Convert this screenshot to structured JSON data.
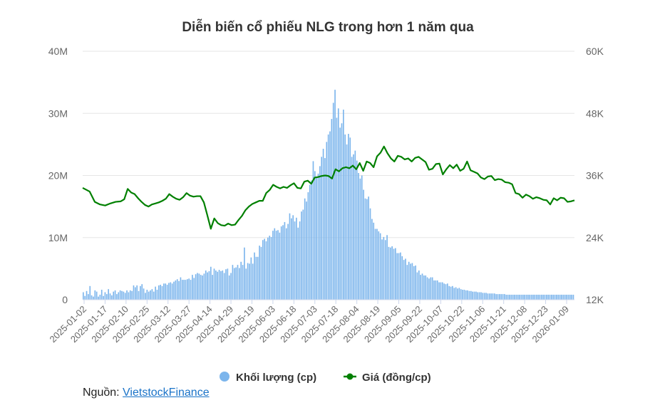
{
  "chart_data": {
    "type": "bar+line",
    "title": "Diễn biến cổ phiếu NLG trong hơn 1 năm qua",
    "left_axis": {
      "ticks": [
        "0",
        "10M",
        "20M",
        "30M",
        "40M"
      ],
      "range": [
        0,
        40000000
      ]
    },
    "right_axis": {
      "ticks": [
        "12K",
        "24K",
        "36K",
        "48K",
        "60K"
      ],
      "range": [
        12000,
        60000
      ]
    },
    "x_ticks": [
      "2025-01-02",
      "2025-01-17",
      "2025-02-10",
      "2025-02-25",
      "2025-03-12",
      "2025-03-27",
      "2025-04-14",
      "2025-04-29",
      "2025-05-19",
      "2025-06-03",
      "2025-06-18",
      "2025-07-03",
      "2025-07-18",
      "2025-08-04",
      "2025-08-19",
      "2025-09-05",
      "2025-09-22",
      "2025-10-07",
      "2025-10-22",
      "2025-11-06",
      "2025-11-21",
      "2025-12-08",
      "2025-12-23",
      "2026-01-09"
    ],
    "legend": [
      {
        "name": "Khối lượng (cp)",
        "color": "#7cb5ec",
        "marker": "circle"
      },
      {
        "name": "Giá (đồng/cp)",
        "color": "#008000",
        "marker": "line-dot"
      }
    ],
    "grid": true,
    "price_series": {
      "name": "Giá (đồng/cp)",
      "color": "#008000",
      "points": [
        [
          0,
          33.6
        ],
        [
          4,
          32.9
        ],
        [
          7,
          30.9
        ],
        [
          10,
          30.4
        ],
        [
          13,
          30.2
        ],
        [
          16,
          30.6
        ],
        [
          19,
          30.9
        ],
        [
          22,
          31.0
        ],
        [
          24,
          31.4
        ],
        [
          26,
          33.4
        ],
        [
          28,
          32.7
        ],
        [
          30,
          32.4
        ],
        [
          32,
          31.6
        ],
        [
          34,
          30.9
        ],
        [
          36,
          30.3
        ],
        [
          38,
          30.0
        ],
        [
          40,
          30.4
        ],
        [
          42,
          30.6
        ],
        [
          44,
          30.8
        ],
        [
          46,
          31.1
        ],
        [
          48,
          31.5
        ],
        [
          50,
          32.4
        ],
        [
          52,
          31.9
        ],
        [
          54,
          31.5
        ],
        [
          56,
          31.3
        ],
        [
          58,
          31.8
        ],
        [
          60,
          32.6
        ],
        [
          62,
          32.1
        ],
        [
          64,
          31.9
        ],
        [
          66,
          32.0
        ],
        [
          68,
          32.0
        ],
        [
          70,
          30.8
        ],
        [
          72,
          28.3
        ],
        [
          74,
          25.7
        ],
        [
          76,
          27.7
        ],
        [
          78,
          26.8
        ],
        [
          80,
          26.4
        ],
        [
          82,
          26.3
        ],
        [
          84,
          26.7
        ],
        [
          86,
          26.4
        ],
        [
          88,
          26.5
        ],
        [
          90,
          27.4
        ],
        [
          92,
          28.2
        ],
        [
          94,
          29.3
        ],
        [
          96,
          30.0
        ],
        [
          98,
          30.5
        ],
        [
          100,
          30.8
        ],
        [
          102,
          31.1
        ],
        [
          104,
          31.1
        ],
        [
          106,
          32.6
        ],
        [
          108,
          33.2
        ],
        [
          110,
          34.2
        ],
        [
          112,
          33.8
        ],
        [
          114,
          33.5
        ],
        [
          116,
          33.8
        ],
        [
          118,
          33.6
        ],
        [
          120,
          34.1
        ],
        [
          122,
          34.5
        ],
        [
          124,
          33.6
        ],
        [
          126,
          33.5
        ],
        [
          128,
          34.8
        ],
        [
          130,
          35.0
        ],
        [
          132,
          34.4
        ],
        [
          134,
          35.6
        ],
        [
          136,
          35.7
        ],
        [
          138,
          35.9
        ],
        [
          140,
          36.0
        ],
        [
          142,
          35.9
        ],
        [
          144,
          35.4
        ],
        [
          146,
          37.2
        ],
        [
          148,
          36.8
        ],
        [
          150,
          37.4
        ],
        [
          152,
          37.6
        ],
        [
          154,
          37.4
        ],
        [
          156,
          37.9
        ],
        [
          158,
          37.2
        ],
        [
          160,
          38.4
        ],
        [
          162,
          36.9
        ],
        [
          164,
          38.7
        ],
        [
          166,
          38.4
        ],
        [
          168,
          37.6
        ],
        [
          170,
          39.7
        ],
        [
          172,
          40.4
        ],
        [
          174,
          41.6
        ],
        [
          176,
          40.3
        ],
        [
          178,
          39.3
        ],
        [
          180,
          38.7
        ],
        [
          182,
          39.8
        ],
        [
          184,
          39.6
        ],
        [
          186,
          39.1
        ],
        [
          188,
          39.3
        ],
        [
          190,
          38.7
        ],
        [
          192,
          39.4
        ],
        [
          194,
          39.6
        ],
        [
          196,
          39.1
        ],
        [
          198,
          38.6
        ],
        [
          200,
          37.1
        ],
        [
          202,
          37.3
        ],
        [
          204,
          38.2
        ],
        [
          206,
          38.3
        ],
        [
          208,
          36.2
        ],
        [
          210,
          37.2
        ],
        [
          212,
          38.0
        ],
        [
          214,
          37.4
        ],
        [
          216,
          38.1
        ],
        [
          218,
          36.9
        ],
        [
          220,
          37.3
        ],
        [
          222,
          38.7
        ],
        [
          224,
          37.0
        ],
        [
          226,
          36.7
        ],
        [
          228,
          36.4
        ],
        [
          230,
          35.6
        ],
        [
          232,
          35.3
        ],
        [
          234,
          35.8
        ],
        [
          236,
          35.9
        ],
        [
          238,
          35.1
        ],
        [
          240,
          35.3
        ],
        [
          242,
          35.2
        ],
        [
          244,
          34.7
        ],
        [
          246,
          34.6
        ],
        [
          248,
          34.3
        ],
        [
          250,
          32.6
        ],
        [
          252,
          32.4
        ],
        [
          254,
          31.7
        ],
        [
          256,
          32.3
        ],
        [
          258,
          32.0
        ],
        [
          260,
          31.5
        ],
        [
          262,
          31.8
        ],
        [
          264,
          31.6
        ],
        [
          266,
          31.3
        ],
        [
          268,
          31.2
        ],
        [
          270,
          30.4
        ],
        [
          272,
          31.6
        ],
        [
          274,
          31.2
        ],
        [
          276,
          31.7
        ],
        [
          278,
          31.6
        ],
        [
          280,
          30.9
        ],
        [
          282,
          31.0
        ],
        [
          284,
          31.2
        ]
      ]
    },
    "volume_series": {
      "name": "Khối lượng (cp)",
      "color": "#7cb5ec",
      "values_millions": [
        1.2,
        0.6,
        1.4,
        0.9,
        2.2,
        0.7,
        0.5,
        1.5,
        1.3,
        0.5,
        0.8,
        1.6,
        0.6,
        1.2,
        0.9,
        1.7,
        1.0,
        0.7,
        1.3,
        1.5,
        0.9,
        1.2,
        1.5,
        1.4,
        1.3,
        1.1,
        1.5,
        1.2,
        1.5,
        1.4,
        2.3,
        2.0,
        2.3,
        1.4,
        2.2,
        2.5,
        1.8,
        1.1,
        1.6,
        1.3,
        1.5,
        1.7,
        1.3,
        2.1,
        1.6,
        2.3,
        2.4,
        2.2,
        2.6,
        2.6,
        2.4,
        2.7,
        2.8,
        2.6,
        2.9,
        3.1,
        3.3,
        3.0,
        3.6,
        3.2,
        3.2,
        3.2,
        3.3,
        3.4,
        3.2,
        4.0,
        3.5,
        4.1,
        4.3,
        4.2,
        4.0,
        3.9,
        4.2,
        4.7,
        4.4,
        4.6,
        5.3,
        4.0,
        5.0,
        4.7,
        4.5,
        4.8,
        4.6,
        4.7,
        4.3,
        4.9,
        5.0,
        3.9,
        4.3,
        5.6,
        5.1,
        5.2,
        5.6,
        5.1,
        6.1,
        5.6,
        8.4,
        5.0,
        5.9,
        5.8,
        6.8,
        5.8,
        7.6,
        6.9,
        6.9,
        8.7,
        8.5,
        9.6,
        9.8,
        9.4,
        10.0,
        10.3,
        10.1,
        11.1,
        11.5,
        11.1,
        11.2,
        10.8,
        11.8,
        12.0,
        12.5,
        11.5,
        12.2,
        13.9,
        13.1,
        13.6,
        12.6,
        13.2,
        11.6,
        12.6,
        14.2,
        14.5,
        16.3,
        15.8,
        17.3,
        18.5,
        19.2,
        22.3,
        20.7,
        19.7,
        20.3,
        21.5,
        23.0,
        24.3,
        22.8,
        25.4,
        26.6,
        27.1,
        29.1,
        31.7,
        33.8,
        29.3,
        30.8,
        27.7,
        28.4,
        30.6,
        26.6,
        25.0,
        26.7,
        26.1,
        23.0,
        23.4,
        24.0,
        22.4,
        20.4,
        19.5,
        20.0,
        17.7,
        16.3,
        16.2,
        16.6,
        14.7,
        13.0,
        12.4,
        11.4,
        11.4,
        11.0,
        10.7,
        9.7,
        10.1,
        9.6,
        10.4,
        8.5,
        8.4,
        8.6,
        8.2,
        8.3,
        7.5,
        7.5,
        7.6,
        7.0,
        6.4,
        6.6,
        5.6,
        6.1,
        5.8,
        5.9,
        5.4,
        5.5,
        4.4,
        4.7,
        4.0,
        4.2,
        3.9,
        3.9,
        3.6,
        3.4,
        3.6,
        3.6,
        3.1,
        3.1,
        3.1,
        2.8,
        2.8,
        2.8,
        2.6,
        2.5,
        2.6,
        2.2,
        2.1,
        2.2,
        1.9,
        2.0,
        1.8,
        1.9,
        1.7,
        1.6,
        1.6,
        1.5,
        1.5,
        1.4,
        1.4,
        1.3,
        1.3,
        1.3,
        1.2,
        1.2,
        1.2,
        1.1,
        1.1,
        1.1,
        1.0,
        1.0,
        1.0,
        1.0,
        1.0,
        0.9,
        0.9,
        0.9,
        0.9,
        0.9,
        0.9,
        0.8,
        0.8,
        0.8,
        0.8,
        0.8,
        0.8,
        0.8,
        0.8,
        0.8,
        0.8,
        0.8,
        0.8,
        0.8,
        0.8,
        0.8,
        0.8,
        0.8,
        0.8,
        0.8,
        0.8,
        0.8,
        0.8,
        0.8,
        0.8,
        0.8,
        0.8,
        0.8,
        0.8,
        0.8,
        0.8,
        0.8,
        0.8,
        0.8,
        0.8,
        0.8,
        0.8,
        0.8,
        0.8,
        0.8,
        0.8,
        0.8
      ]
    }
  },
  "source": {
    "label": "Nguồn: ",
    "link_text": "VietstockFinance"
  }
}
